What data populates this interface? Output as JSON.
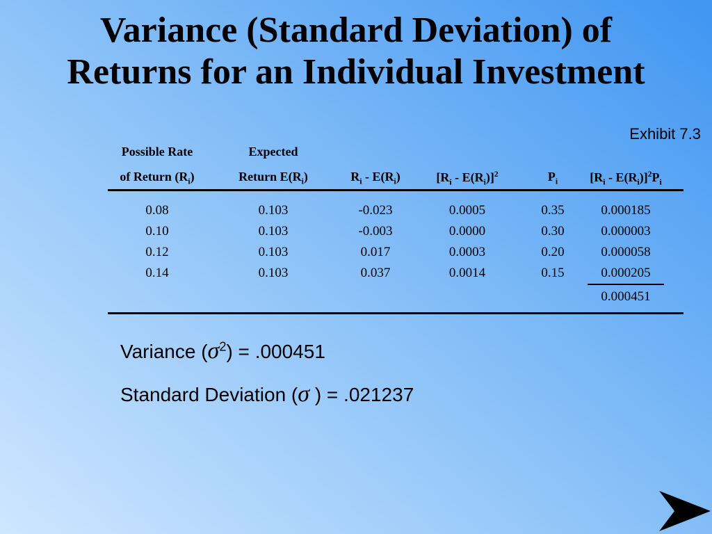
{
  "title": [
    "Variance (Standard Deviation) of",
    "Returns for an Individual Investment"
  ],
  "exhibit": "Exhibit 7.3",
  "table": {
    "headers": [
      [
        [
          "Possible Rate"
        ],
        [
          "of Return (R",
          {
            "sub": "i"
          },
          ")"
        ]
      ],
      [
        [
          "Expected"
        ],
        [
          "Return E(R",
          {
            "sub": "i"
          },
          ")"
        ]
      ],
      [
        [],
        [
          "R",
          {
            "sub": "i"
          },
          " - E(R",
          {
            "sub": "i"
          },
          ")"
        ]
      ],
      [
        [],
        [
          "[R",
          {
            "sub": "i"
          },
          " - E(R",
          {
            "sub": "i"
          },
          ")]",
          {
            "sup": "2"
          }
        ]
      ],
      [
        [],
        [
          "P",
          {
            "sub": "i"
          }
        ]
      ],
      [
        [],
        [
          "[R",
          {
            "sub": "i"
          },
          " - E(R",
          {
            "sub": "i"
          },
          ")]",
          {
            "sup": "2"
          },
          "P",
          {
            "sub": "i"
          }
        ]
      ]
    ],
    "rows": [
      [
        "0.08",
        "0.103",
        "-0.023",
        "0.0005",
        "0.35",
        "0.000185"
      ],
      [
        "0.10",
        "0.103",
        "-0.003",
        "0.0000",
        "0.30",
        "0.000003"
      ],
      [
        "0.12",
        "0.103",
        "0.017",
        "0.0003",
        "0.20",
        "0.000058"
      ],
      [
        "0.14",
        "0.103",
        "0.037",
        "0.0014",
        "0.15",
        "0.000205"
      ]
    ],
    "total": "0.000451"
  },
  "results": [
    [
      "Variance (",
      {
        "symbol": "σ"
      },
      {
        "sup": "2"
      },
      ") = .000451"
    ],
    [
      "Standard Deviation (",
      {
        "symbol": "σ"
      },
      " ) = .021237"
    ]
  ]
}
